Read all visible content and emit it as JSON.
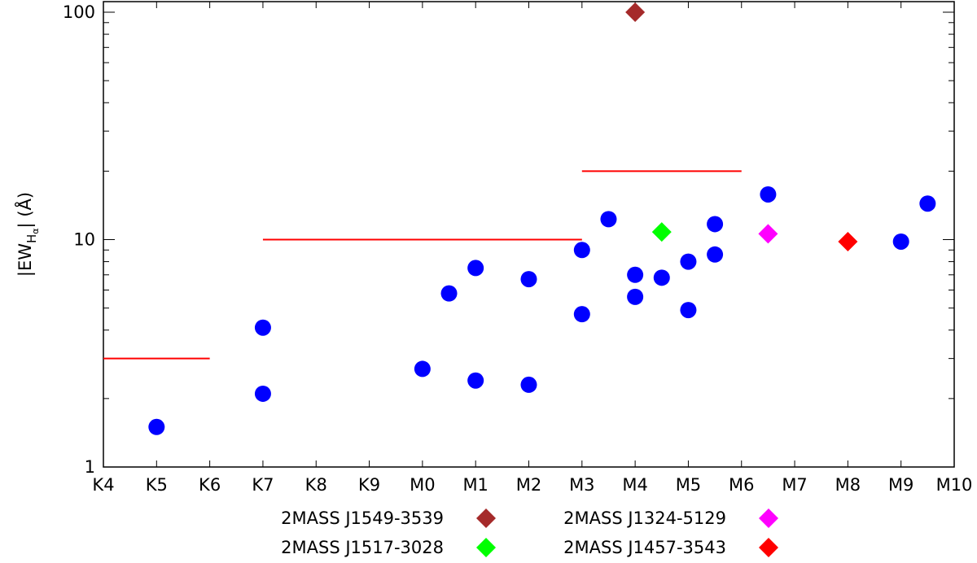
{
  "chart_data": {
    "type": "scatter",
    "title": "",
    "xlabel": "",
    "ylabel": {
      "prefix": "|EW",
      "sub": "H",
      "subsub": "α",
      "suffix": "| (Å)"
    },
    "y_scale": "log",
    "ylim": [
      1,
      100
    ],
    "y_ticks": [
      1,
      10,
      100
    ],
    "y_tick_labels": [
      "1",
      "10",
      "100"
    ],
    "x_categories": [
      "K4",
      "K5",
      "K6",
      "K7",
      "K8",
      "K9",
      "M0",
      "M1",
      "M2",
      "M3",
      "M4",
      "M5",
      "M6",
      "M7",
      "M8",
      "M9",
      "M10"
    ],
    "grid": false,
    "series": [
      {
        "marker": "circle",
        "color": "#0000ff",
        "points": [
          {
            "x": "K5",
            "y": 1.5
          },
          {
            "x": "K7",
            "y": 2.1
          },
          {
            "x": "K7",
            "y": 4.1
          },
          {
            "x": "M0",
            "y": 2.7
          },
          {
            "x": "M0.5",
            "y": 5.8
          },
          {
            "x": "M1",
            "y": 2.4
          },
          {
            "x": "M1",
            "y": 7.5
          },
          {
            "x": "M2",
            "y": 2.3
          },
          {
            "x": "M2",
            "y": 6.7
          },
          {
            "x": "M3",
            "y": 4.7
          },
          {
            "x": "M3",
            "y": 9.0
          },
          {
            "x": "M3.5",
            "y": 12.3
          },
          {
            "x": "M4",
            "y": 5.6
          },
          {
            "x": "M4",
            "y": 7.0
          },
          {
            "x": "M4.5",
            "y": 6.8
          },
          {
            "x": "M5",
            "y": 4.9
          },
          {
            "x": "M5",
            "y": 8.0
          },
          {
            "x": "M5.5",
            "y": 8.6
          },
          {
            "x": "M5.5",
            "y": 11.7
          },
          {
            "x": "M6.5",
            "y": 15.8
          },
          {
            "x": "M9",
            "y": 9.8
          },
          {
            "x": "M9.5",
            "y": 14.4
          }
        ]
      },
      {
        "name": "2MASS J1549-3539",
        "marker": "diamond",
        "color": "#a52a2a",
        "points": [
          {
            "x": "M4",
            "y": 100
          }
        ]
      },
      {
        "name": "2MASS J1517-3028",
        "marker": "diamond",
        "color": "#00ff00",
        "points": [
          {
            "x": "M4.5",
            "y": 10.8
          }
        ]
      },
      {
        "name": "2MASS J1324-5129",
        "marker": "diamond",
        "color": "#ff00ff",
        "points": [
          {
            "x": "M6.5",
            "y": 10.6
          }
        ]
      },
      {
        "name": "2MASS J1457-3543",
        "marker": "diamond",
        "color": "#ff0000",
        "points": [
          {
            "x": "M8",
            "y": 9.8
          }
        ]
      }
    ],
    "threshold_lines": {
      "color": "#ff0000",
      "segments": [
        {
          "x_from": "K4",
          "x_to": "K6",
          "y": 3
        },
        {
          "x_from": "K7",
          "x_to": "M3",
          "y": 10
        },
        {
          "x_from": "M3",
          "x_to": "M6",
          "y": 20
        }
      ]
    },
    "legend": {
      "placement": "bottom",
      "entries": [
        {
          "label": "2MASS J1549-3539",
          "color": "#a52a2a",
          "marker": "diamond"
        },
        {
          "label": "2MASS J1324-5129",
          "color": "#ff00ff",
          "marker": "diamond"
        },
        {
          "label": "2MASS J1517-3028",
          "color": "#00ff00",
          "marker": "diamond"
        },
        {
          "label": "2MASS J1457-3543",
          "color": "#ff0000",
          "marker": "diamond"
        }
      ]
    }
  }
}
